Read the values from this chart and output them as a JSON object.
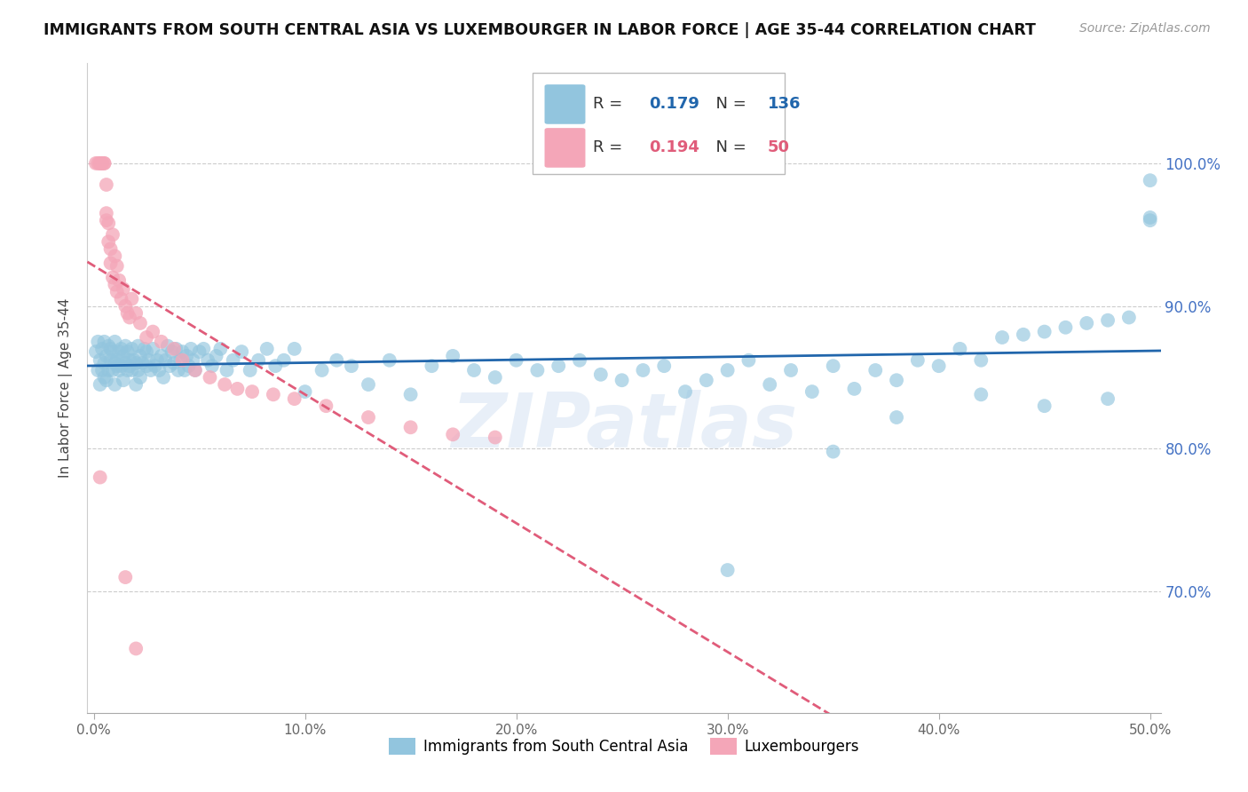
{
  "title": "IMMIGRANTS FROM SOUTH CENTRAL ASIA VS LUXEMBOURGER IN LABOR FORCE | AGE 35-44 CORRELATION CHART",
  "source": "Source: ZipAtlas.com",
  "ylabel": "In Labor Force | Age 35-44",
  "xlim": [
    -0.003,
    0.505
  ],
  "ylim": [
    0.615,
    1.07
  ],
  "yticks": [
    0.7,
    0.8,
    0.9,
    1.0
  ],
  "ytick_labels": [
    "70.0%",
    "80.0%",
    "90.0%",
    "100.0%"
  ],
  "xticks": [
    0.0,
    0.1,
    0.2,
    0.3,
    0.4,
    0.5
  ],
  "xtick_labels": [
    "0.0%",
    "10.0%",
    "20.0%",
    "30.0%",
    "40.0%",
    "50.0%"
  ],
  "blue_color": "#92c5de",
  "blue_line_color": "#2166ac",
  "pink_color": "#f4a6b8",
  "pink_line_color": "#e05c7a",
  "R_blue": 0.179,
  "N_blue": 136,
  "R_pink": 0.194,
  "N_pink": 50,
  "watermark": "ZIPatlas",
  "legend_label_blue": "Immigrants from South Central Asia",
  "legend_label_pink": "Luxembourgers",
  "blue_scatter_x": [
    0.001,
    0.002,
    0.002,
    0.003,
    0.003,
    0.004,
    0.004,
    0.005,
    0.005,
    0.005,
    0.006,
    0.006,
    0.007,
    0.007,
    0.008,
    0.008,
    0.009,
    0.009,
    0.01,
    0.01,
    0.01,
    0.011,
    0.011,
    0.012,
    0.012,
    0.013,
    0.013,
    0.014,
    0.014,
    0.015,
    0.015,
    0.016,
    0.016,
    0.017,
    0.017,
    0.018,
    0.018,
    0.019,
    0.02,
    0.02,
    0.021,
    0.021,
    0.022,
    0.022,
    0.023,
    0.024,
    0.025,
    0.025,
    0.026,
    0.027,
    0.028,
    0.029,
    0.03,
    0.031,
    0.032,
    0.033,
    0.034,
    0.035,
    0.036,
    0.037,
    0.038,
    0.039,
    0.04,
    0.041,
    0.042,
    0.043,
    0.044,
    0.045,
    0.046,
    0.047,
    0.048,
    0.05,
    0.052,
    0.054,
    0.056,
    0.058,
    0.06,
    0.063,
    0.066,
    0.07,
    0.074,
    0.078,
    0.082,
    0.086,
    0.09,
    0.095,
    0.1,
    0.108,
    0.115,
    0.122,
    0.13,
    0.14,
    0.15,
    0.16,
    0.17,
    0.18,
    0.19,
    0.2,
    0.21,
    0.22,
    0.23,
    0.24,
    0.25,
    0.26,
    0.27,
    0.28,
    0.29,
    0.3,
    0.31,
    0.32,
    0.33,
    0.34,
    0.35,
    0.36,
    0.37,
    0.38,
    0.39,
    0.4,
    0.41,
    0.42,
    0.43,
    0.44,
    0.45,
    0.46,
    0.47,
    0.48,
    0.49,
    0.5,
    0.5,
    0.5,
    0.3,
    0.35,
    0.38,
    0.42,
    0.45,
    0.48
  ],
  "blue_scatter_y": [
    0.868,
    0.855,
    0.875,
    0.845,
    0.862,
    0.87,
    0.855,
    0.86,
    0.85,
    0.875,
    0.865,
    0.848,
    0.872,
    0.855,
    0.862,
    0.87,
    0.855,
    0.868,
    0.86,
    0.845,
    0.875,
    0.858,
    0.862,
    0.868,
    0.855,
    0.87,
    0.858,
    0.865,
    0.848,
    0.86,
    0.872,
    0.855,
    0.868,
    0.862,
    0.858,
    0.87,
    0.855,
    0.862,
    0.86,
    0.845,
    0.872,
    0.855,
    0.865,
    0.85,
    0.86,
    0.87,
    0.858,
    0.868,
    0.862,
    0.855,
    0.87,
    0.858,
    0.862,
    0.855,
    0.865,
    0.85,
    0.862,
    0.872,
    0.858,
    0.868,
    0.86,
    0.87,
    0.855,
    0.862,
    0.868,
    0.855,
    0.865,
    0.858,
    0.87,
    0.862,
    0.855,
    0.868,
    0.87,
    0.862,
    0.858,
    0.865,
    0.87,
    0.855,
    0.862,
    0.868,
    0.855,
    0.862,
    0.87,
    0.858,
    0.862,
    0.87,
    0.84,
    0.855,
    0.862,
    0.858,
    0.845,
    0.862,
    0.838,
    0.858,
    0.865,
    0.855,
    0.85,
    0.862,
    0.855,
    0.858,
    0.862,
    0.852,
    0.848,
    0.855,
    0.858,
    0.84,
    0.848,
    0.855,
    0.862,
    0.845,
    0.855,
    0.84,
    0.858,
    0.842,
    0.855,
    0.848,
    0.862,
    0.858,
    0.87,
    0.862,
    0.878,
    0.88,
    0.882,
    0.885,
    0.888,
    0.89,
    0.892,
    0.962,
    0.96,
    0.988,
    0.715,
    0.798,
    0.822,
    0.838,
    0.83,
    0.835
  ],
  "pink_scatter_x": [
    0.001,
    0.002,
    0.003,
    0.003,
    0.004,
    0.004,
    0.005,
    0.005,
    0.006,
    0.006,
    0.006,
    0.007,
    0.007,
    0.008,
    0.008,
    0.009,
    0.009,
    0.01,
    0.01,
    0.011,
    0.011,
    0.012,
    0.013,
    0.014,
    0.015,
    0.016,
    0.017,
    0.018,
    0.02,
    0.022,
    0.025,
    0.028,
    0.032,
    0.038,
    0.042,
    0.048,
    0.055,
    0.062,
    0.068,
    0.075,
    0.085,
    0.095,
    0.11,
    0.13,
    0.15,
    0.17,
    0.19,
    0.003,
    0.015,
    0.02
  ],
  "pink_scatter_y": [
    1.0,
    1.0,
    1.0,
    1.0,
    1.0,
    1.0,
    1.0,
    1.0,
    0.985,
    0.965,
    0.96,
    0.958,
    0.945,
    0.94,
    0.93,
    0.95,
    0.92,
    0.935,
    0.915,
    0.91,
    0.928,
    0.918,
    0.905,
    0.912,
    0.9,
    0.895,
    0.892,
    0.905,
    0.895,
    0.888,
    0.878,
    0.882,
    0.875,
    0.87,
    0.862,
    0.855,
    0.85,
    0.845,
    0.842,
    0.84,
    0.838,
    0.835,
    0.83,
    0.822,
    0.815,
    0.81,
    0.808,
    0.78,
    0.71,
    0.66
  ]
}
